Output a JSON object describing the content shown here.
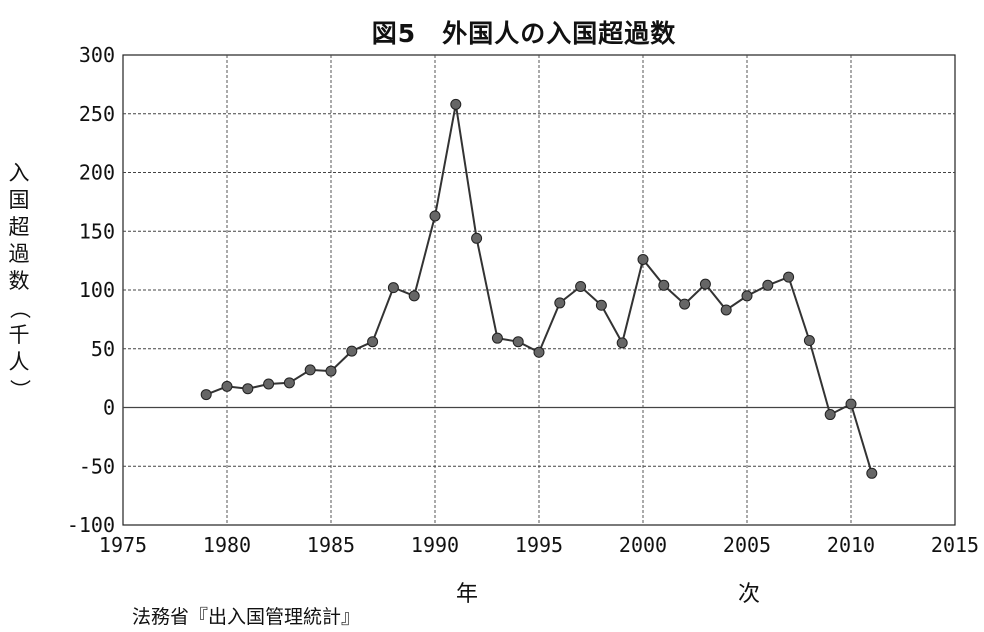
{
  "chart_data": {
    "type": "line",
    "title": "図5　外国人の入国超過数",
    "ylabel": "入国超過数（千人）",
    "xlabel": "年　　次",
    "source": "法務省『出入国管理統計』",
    "xlim": [
      1975,
      2015
    ],
    "ylim": [
      -100,
      300
    ],
    "xticks": [
      1975,
      1980,
      1985,
      1990,
      1995,
      2000,
      2005,
      2010,
      2015
    ],
    "yticks": [
      300,
      250,
      200,
      150,
      100,
      50,
      0,
      -50,
      -100
    ],
    "grid": true,
    "series": [
      {
        "color": "#333333",
        "x": [
          1979,
          1980,
          1981,
          1982,
          1983,
          1984,
          1985,
          1986,
          1987,
          1988,
          1989,
          1990,
          1991,
          1992,
          1993,
          1994,
          1995,
          1996,
          1997,
          1998,
          1999,
          2000,
          2001,
          2002,
          2003,
          2004,
          2005,
          2006,
          2007,
          2008,
          2009,
          2010,
          2011
        ],
        "y": [
          11,
          18,
          16,
          20,
          21,
          32,
          31,
          48,
          56,
          102,
          95,
          163,
          258,
          144,
          59,
          56,
          47,
          89,
          103,
          87,
          55,
          126,
          104,
          88,
          105,
          83,
          95,
          104,
          111,
          57,
          -6,
          3,
          -56
        ]
      }
    ]
  }
}
